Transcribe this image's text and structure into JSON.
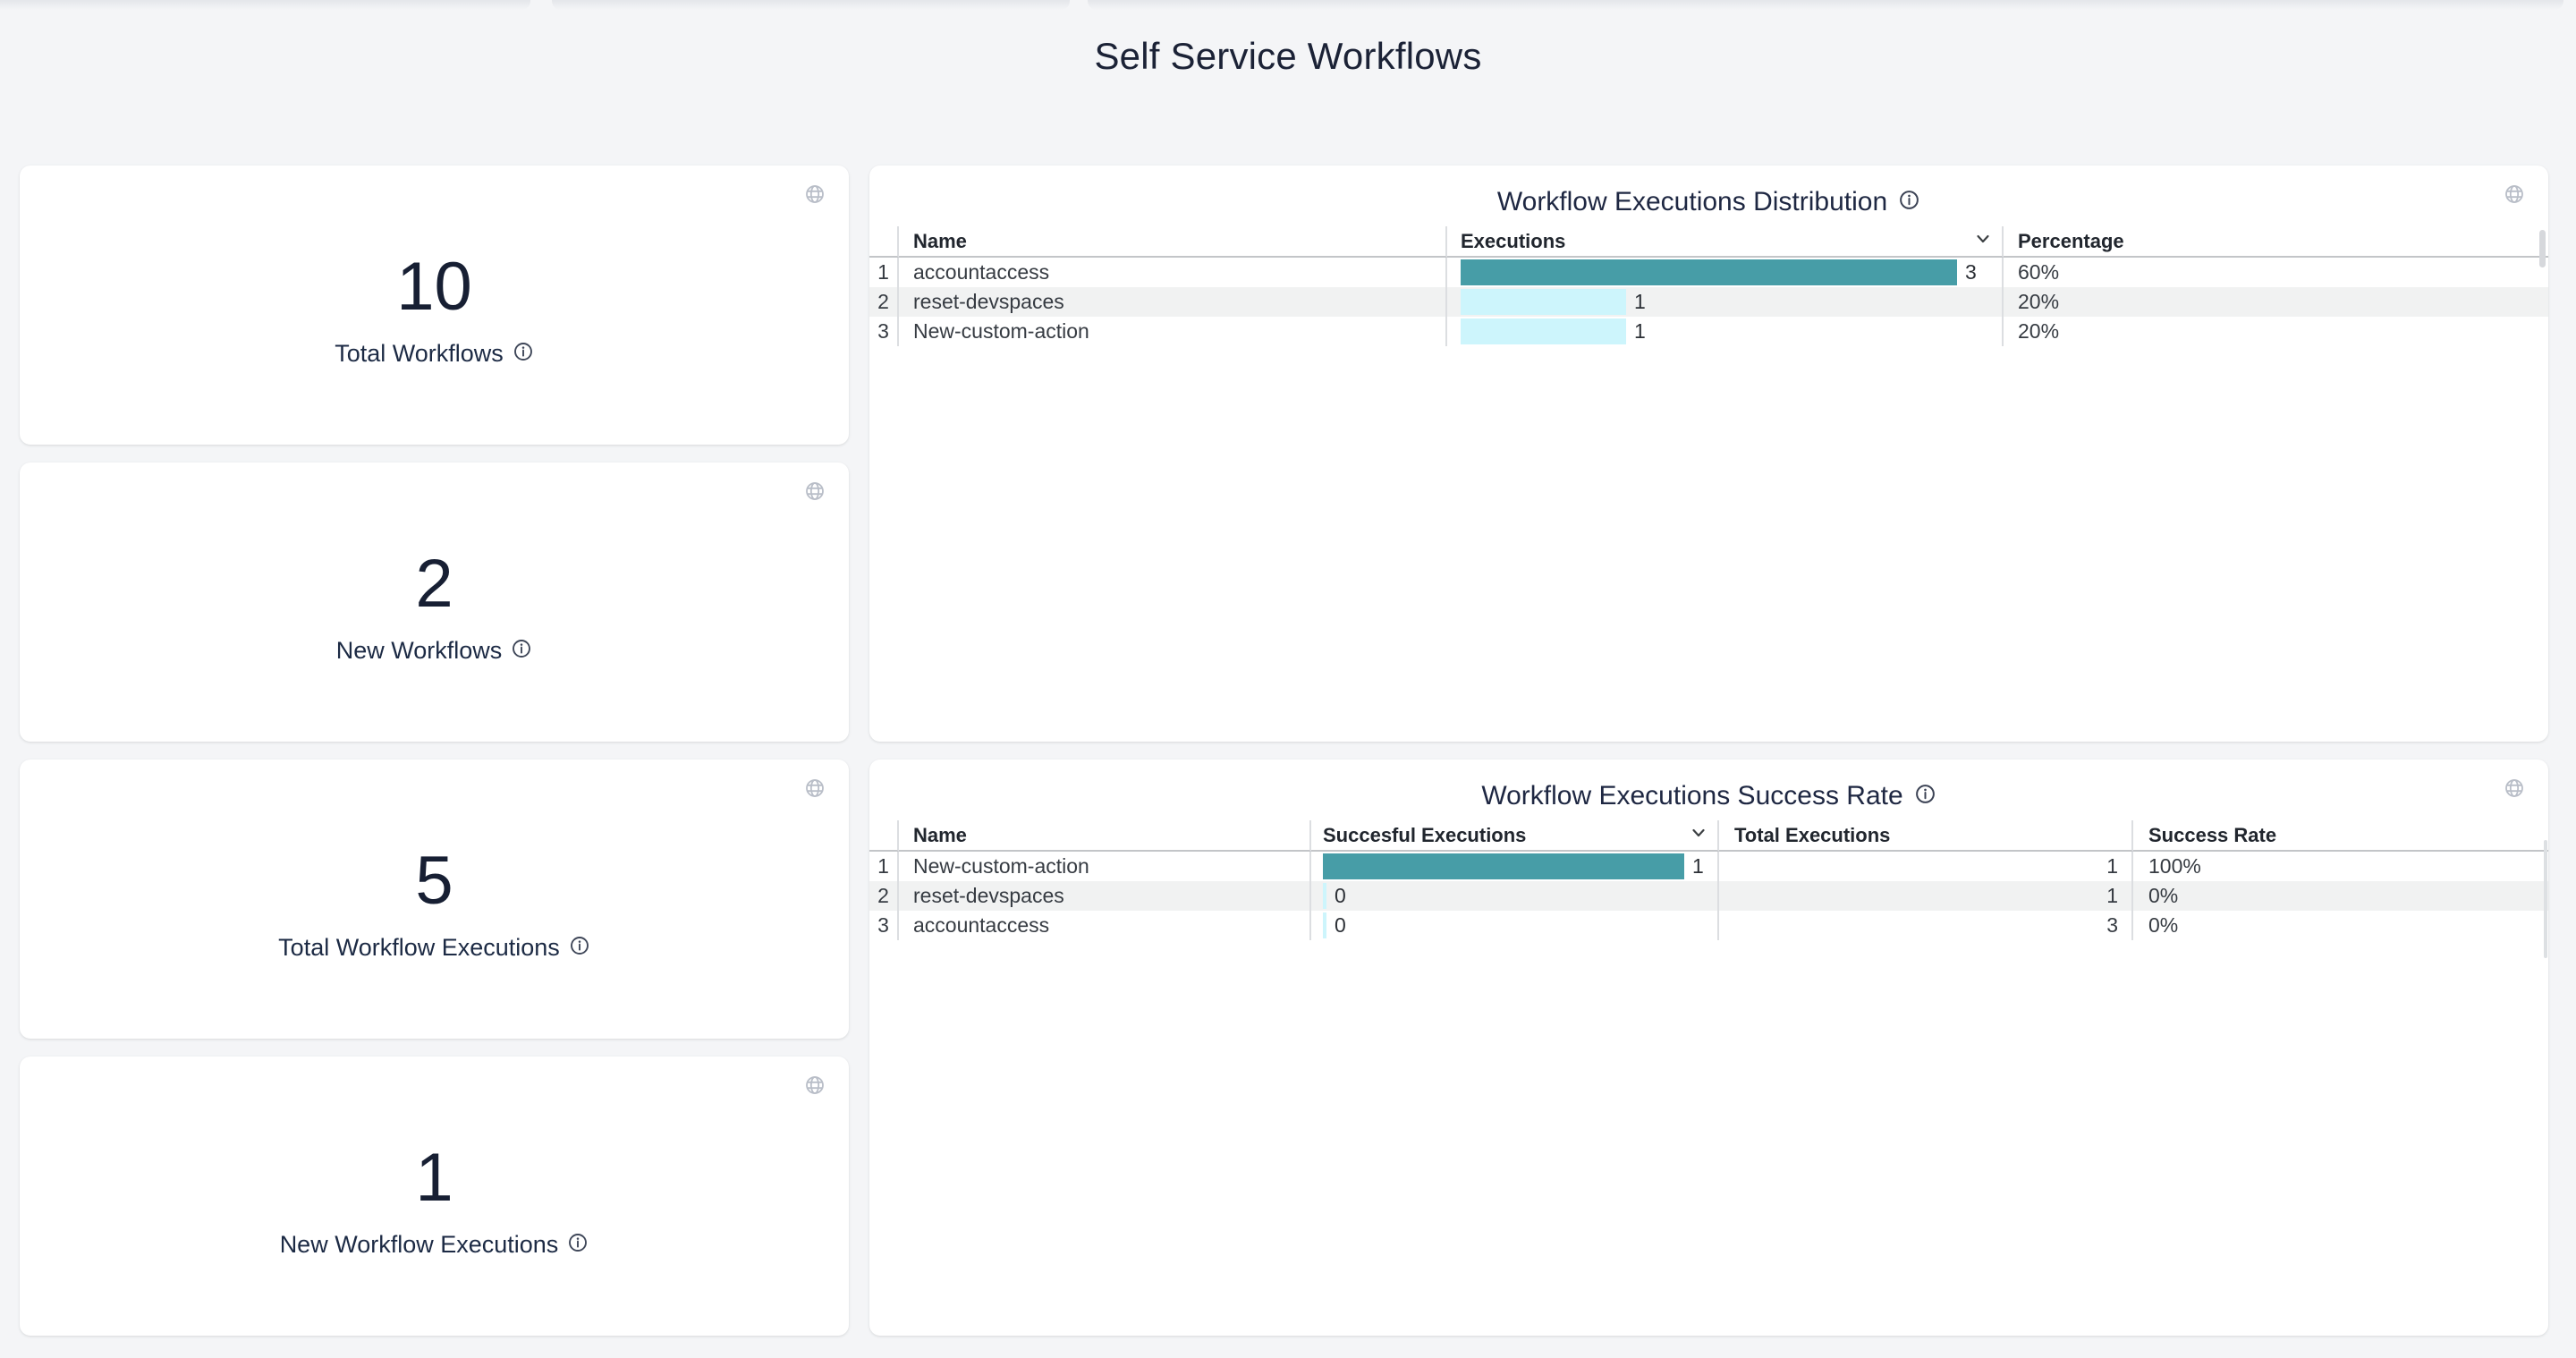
{
  "page": {
    "title": "Self Service Workflows"
  },
  "colors": {
    "page_bg": "#f4f5f7",
    "card_bg": "#ffffff",
    "heading_navy": "#1b2236",
    "bar_primary": "#479da7",
    "bar_secondary": "#cdf5fc",
    "row_stripe": "#f1f2f2",
    "globe_icon": "#b9bec8"
  },
  "stat_cards": [
    {
      "value": "10",
      "label": "Total Workflows"
    },
    {
      "value": "2",
      "label": "New Workflows"
    },
    {
      "value": "5",
      "label": "Total Workflow Executions"
    },
    {
      "value": "1",
      "label": "New Workflow Executions"
    }
  ],
  "tables": [
    {
      "title": "Workflow Executions Distribution",
      "headers": {
        "name": "Name",
        "executions": "Executions",
        "percentage": "Percentage"
      },
      "sorted_by": "Executions",
      "max": 3,
      "rows": [
        {
          "n": "1",
          "name": "accountaccess",
          "value": 3,
          "value_label": "3",
          "percentage": "60%"
        },
        {
          "n": "2",
          "name": "reset-devspaces",
          "value": 1,
          "value_label": "1",
          "percentage": "20%"
        },
        {
          "n": "3",
          "name": "New-custom-action",
          "value": 1,
          "value_label": "1",
          "percentage": "20%"
        }
      ]
    },
    {
      "title": "Workflow Executions Success Rate",
      "headers": {
        "name": "Name",
        "successful": "Succesful Executions",
        "total": "Total Executions",
        "rate": "Success Rate"
      },
      "sorted_by": "Succesful Executions",
      "max": 1,
      "rows": [
        {
          "n": "1",
          "name": "New-custom-action",
          "value": 1,
          "value_label": "1",
          "total": "1",
          "rate": "100%"
        },
        {
          "n": "2",
          "name": "reset-devspaces",
          "value": 0,
          "value_label": "0",
          "total": "1",
          "rate": "0%"
        },
        {
          "n": "3",
          "name": "accountaccess",
          "value": 0,
          "value_label": "0",
          "total": "3",
          "rate": "0%"
        }
      ]
    }
  ],
  "icons": {
    "card_corner": "globe-icon",
    "label_help": "info-icon",
    "sort_indicator": "chevron-down-icon"
  }
}
